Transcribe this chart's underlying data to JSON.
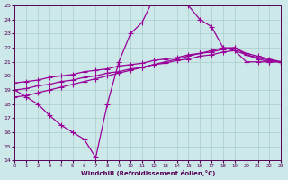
{
  "xlabel": "Windchill (Refroidissement éolien,°C)",
  "xlim": [
    0,
    23
  ],
  "ylim": [
    14,
    25
  ],
  "xticks": [
    0,
    1,
    2,
    3,
    4,
    5,
    6,
    7,
    8,
    9,
    10,
    11,
    12,
    13,
    14,
    15,
    16,
    17,
    18,
    19,
    20,
    21,
    22,
    23
  ],
  "yticks": [
    14,
    15,
    16,
    17,
    18,
    19,
    20,
    21,
    22,
    23,
    24,
    25
  ],
  "bg_color": "#cce8e8",
  "grid_color": "#aacccc",
  "line_color": "#990099",
  "marker": "+",
  "markersize": 4,
  "linewidth": 0.9,
  "lines": [
    {
      "x": [
        0,
        1,
        2,
        3,
        4,
        5,
        6,
        7,
        8,
        9,
        10,
        11,
        12,
        13,
        14,
        15,
        16,
        17,
        18,
        19,
        20,
        21,
        22,
        23
      ],
      "y": [
        19.0,
        18.5,
        18.0,
        17.2,
        16.5,
        16.0,
        15.5,
        14.2,
        18.0,
        21.0,
        23.0,
        23.8,
        25.5,
        25.5,
        25.5,
        25.0,
        24.0,
        23.5,
        22.0,
        21.8,
        21.0,
        21.0,
        21.0,
        21.0
      ]
    },
    {
      "x": [
        0,
        1,
        2,
        3,
        4,
        5,
        6,
        7,
        8,
        9,
        10,
        11,
        12,
        13,
        14,
        15,
        16,
        17,
        18,
        19,
        20,
        21,
        22,
        23
      ],
      "y": [
        18.5,
        18.6,
        18.8,
        19.0,
        19.2,
        19.4,
        19.6,
        19.8,
        20.0,
        20.2,
        20.4,
        20.6,
        20.8,
        21.0,
        21.2,
        21.4,
        21.6,
        21.8,
        22.0,
        22.0,
        21.5,
        21.2,
        21.0,
        21.0
      ]
    },
    {
      "x": [
        0,
        1,
        2,
        3,
        4,
        5,
        6,
        7,
        8,
        9,
        10,
        11,
        12,
        13,
        14,
        15,
        16,
        17,
        18,
        19,
        20,
        21,
        22,
        23
      ],
      "y": [
        19.0,
        19.1,
        19.3,
        19.4,
        19.6,
        19.7,
        19.9,
        20.0,
        20.2,
        20.3,
        20.5,
        20.6,
        20.8,
        20.9,
        21.1,
        21.2,
        21.4,
        21.5,
        21.7,
        21.8,
        21.5,
        21.3,
        21.1,
        21.0
      ]
    },
    {
      "x": [
        0,
        1,
        2,
        3,
        4,
        5,
        6,
        7,
        8,
        9,
        10,
        11,
        12,
        13,
        14,
        15,
        16,
        17,
        18,
        19,
        20,
        21,
        22,
        23
      ],
      "y": [
        19.5,
        19.6,
        19.7,
        19.9,
        20.0,
        20.1,
        20.3,
        20.4,
        20.5,
        20.7,
        20.8,
        20.9,
        21.1,
        21.2,
        21.3,
        21.5,
        21.6,
        21.7,
        21.9,
        22.0,
        21.6,
        21.4,
        21.2,
        21.0
      ]
    }
  ]
}
